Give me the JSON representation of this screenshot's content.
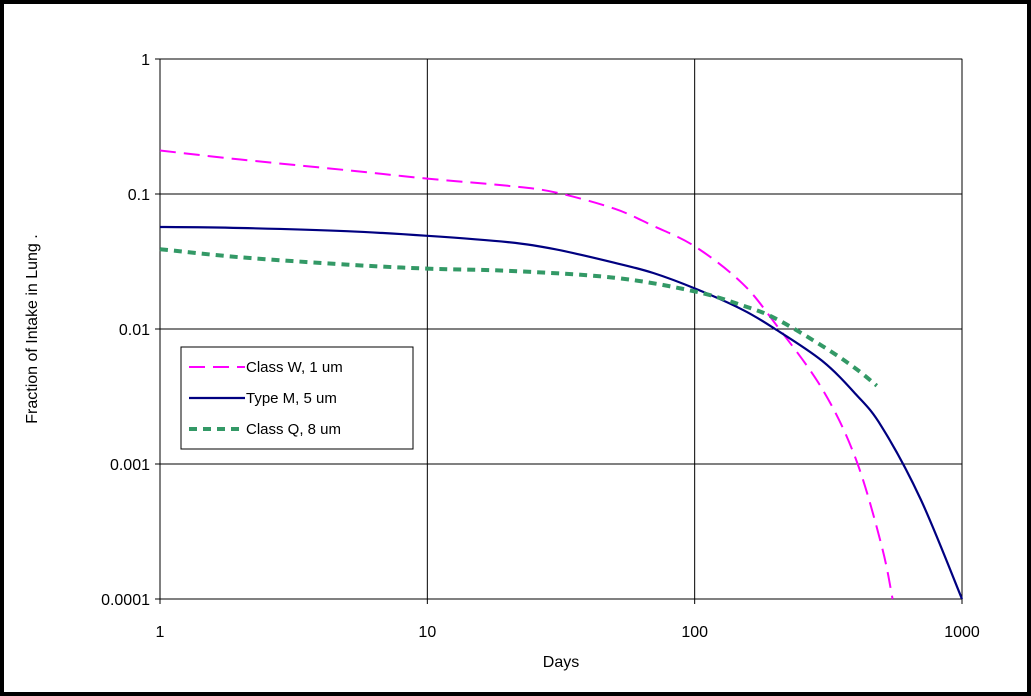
{
  "chart_data": {
    "type": "line",
    "xlabel": "Days",
    "ylabel": "Fraction of Intake in Lung .",
    "x_scale": "log",
    "y_scale": "log",
    "xlim": [
      1,
      1000
    ],
    "ylim": [
      0.0001,
      1
    ],
    "grid": true,
    "legend_position": "center-left",
    "x_ticks": [
      {
        "value": 1,
        "label": "1"
      },
      {
        "value": 10,
        "label": "10"
      },
      {
        "value": 100,
        "label": "100"
      },
      {
        "value": 1000,
        "label": "1000"
      }
    ],
    "y_ticks": [
      {
        "value": 0.0001,
        "label": "0.0001"
      },
      {
        "value": 0.001,
        "label": "0.001"
      },
      {
        "value": 0.01,
        "label": "0.01"
      },
      {
        "value": 0.1,
        "label": "0.1"
      },
      {
        "value": 1,
        "label": "1"
      }
    ],
    "series": [
      {
        "name": "Class W, 1 um",
        "color": "#ff00ff",
        "style": "long-dash",
        "points": [
          [
            1,
            0.21
          ],
          [
            2,
            0.18
          ],
          [
            5,
            0.15
          ],
          [
            10,
            0.13
          ],
          [
            20,
            0.115
          ],
          [
            30,
            0.103
          ],
          [
            50,
            0.078
          ],
          [
            70,
            0.058
          ],
          [
            100,
            0.041
          ],
          [
            150,
            0.022
          ],
          [
            200,
            0.011
          ],
          [
            300,
            0.0036
          ],
          [
            400,
            0.0011
          ],
          [
            500,
            0.00025
          ],
          [
            550,
            0.0001
          ]
        ]
      },
      {
        "name": "Type M, 5 um",
        "color": "#000080",
        "style": "solid",
        "points": [
          [
            1,
            0.057
          ],
          [
            2,
            0.056
          ],
          [
            5,
            0.053
          ],
          [
            10,
            0.049
          ],
          [
            20,
            0.044
          ],
          [
            30,
            0.039
          ],
          [
            50,
            0.031
          ],
          [
            70,
            0.026
          ],
          [
            100,
            0.02
          ],
          [
            150,
            0.014
          ],
          [
            200,
            0.01
          ],
          [
            300,
            0.0058
          ],
          [
            400,
            0.0033
          ],
          [
            500,
            0.0019
          ],
          [
            700,
            0.00055
          ],
          [
            1000,
            0.0001
          ]
        ]
      },
      {
        "name": "Class Q, 8 um",
        "color": "#339966",
        "style": "short-dash",
        "points": [
          [
            1,
            0.039
          ],
          [
            2,
            0.034
          ],
          [
            5,
            0.03
          ],
          [
            10,
            0.028
          ],
          [
            20,
            0.027
          ],
          [
            50,
            0.024
          ],
          [
            100,
            0.019
          ],
          [
            150,
            0.015
          ],
          [
            200,
            0.012
          ],
          [
            300,
            0.0075
          ],
          [
            400,
            0.0051
          ],
          [
            480,
            0.0038
          ]
        ]
      }
    ]
  }
}
